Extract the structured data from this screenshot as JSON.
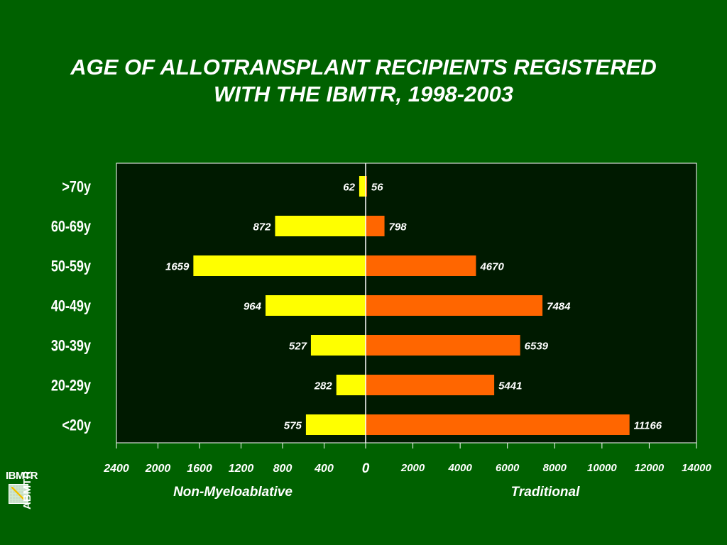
{
  "title_line1": "AGE OF ALLOTRANSPLANT RECIPIENTS REGISTERED",
  "title_line2": "WITH THE IBMTR, 1998-2003",
  "logo": {
    "top_text": "IBMTR",
    "side_text": "ABMTR"
  },
  "colors": {
    "background": "#006100",
    "plot_area": "#001a00",
    "left_bar": "#ffff00",
    "right_bar": "#ff6600",
    "text": "#ffffff",
    "bar_label": "#000000"
  },
  "chart_data": {
    "type": "bar",
    "orientation": "horizontal",
    "layout": "back-to-back",
    "categories": [
      ">70y",
      "60-69y",
      "50-59y",
      "40-49y",
      "30-39y",
      "20-29y",
      "<20y"
    ],
    "series": [
      {
        "name": "Non-Myeloablative",
        "side": "left",
        "values": [
          62,
          872,
          1659,
          964,
          527,
          282,
          575
        ]
      },
      {
        "name": "Traditional",
        "side": "right",
        "values": [
          56,
          798,
          4670,
          7484,
          6539,
          5441,
          11166
        ]
      }
    ],
    "left_axis": {
      "label": "Non-Myeloablative",
      "range": [
        0,
        2400
      ],
      "ticks": [
        "2400",
        "2000",
        "1600",
        "1200",
        "800",
        "400"
      ]
    },
    "center_tick": "0",
    "right_axis": {
      "label": "Traditional",
      "range": [
        0,
        14000
      ],
      "ticks": [
        "2000",
        "4000",
        "6000",
        "8000",
        "10000",
        "12000",
        "14000"
      ]
    },
    "grid": false,
    "legend": "none"
  }
}
